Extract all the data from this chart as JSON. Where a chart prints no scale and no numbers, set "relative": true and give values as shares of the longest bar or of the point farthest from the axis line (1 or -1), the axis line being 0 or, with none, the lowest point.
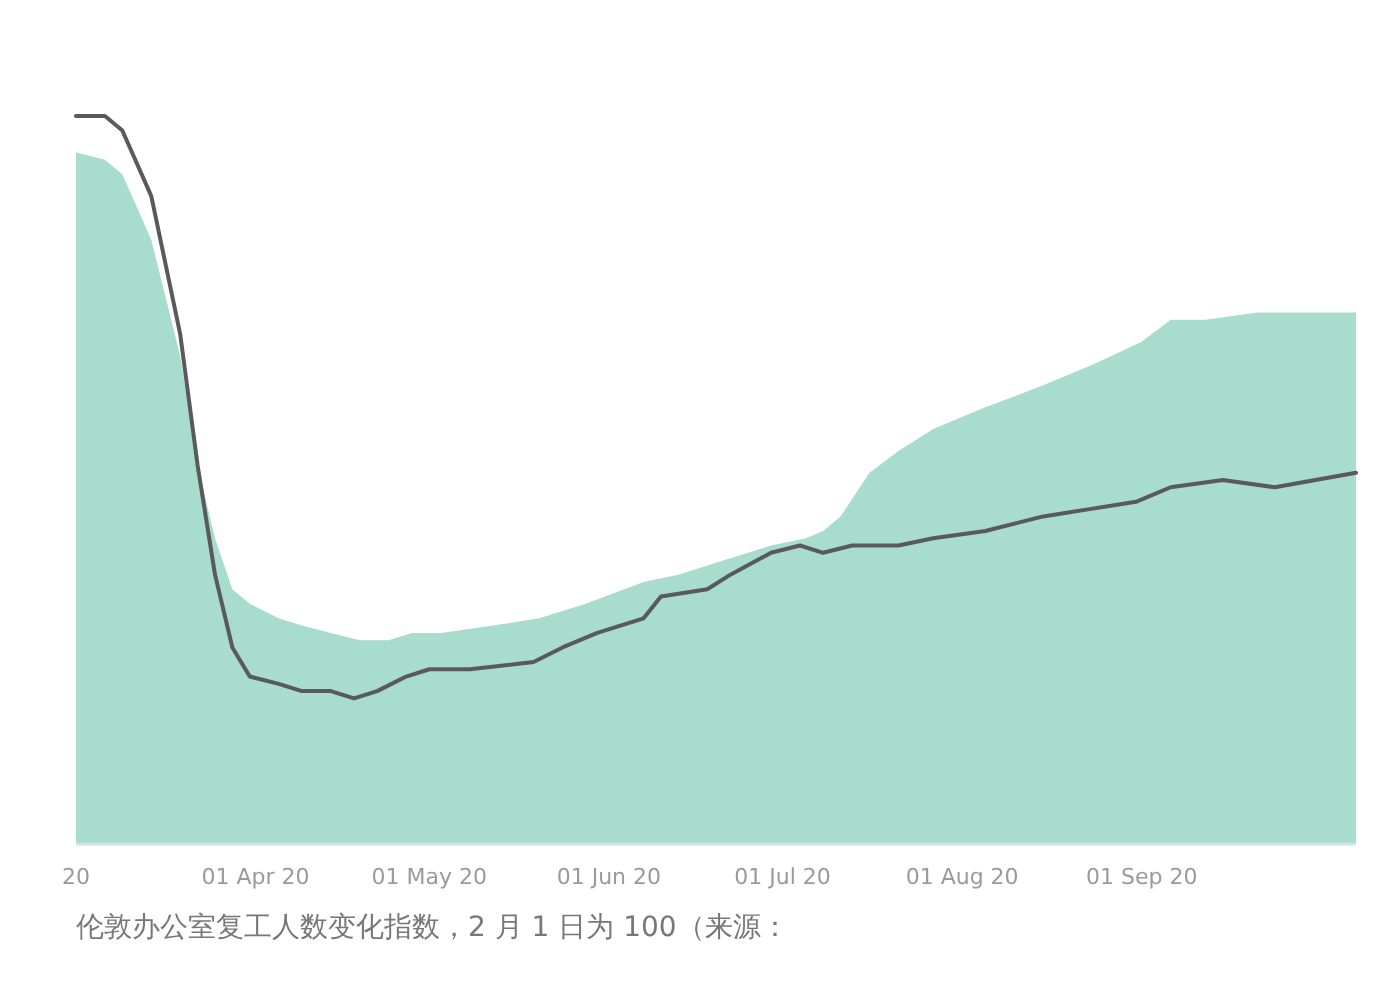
{
  "chart_data": {
    "type": "area",
    "relative": true,
    "grid": false,
    "annotations": [
      "伦敦办公室复工人数变化指数，2 月 1 日为 100（来源："
    ],
    "xlim": [
      "2020-03-01",
      "2020-10-08"
    ],
    "xticks": [
      {
        "value": "2020-03-01",
        "label": "20"
      },
      {
        "value": "2020-04-01",
        "label": "01 Apr 20"
      },
      {
        "value": "2020-05-01",
        "label": "01 May 20"
      },
      {
        "value": "2020-06-01",
        "label": "01 Jun 20"
      },
      {
        "value": "2020-07-01",
        "label": "01 Jul 20"
      },
      {
        "value": "2020-08-01",
        "label": "01 Aug 20"
      },
      {
        "value": "2020-09-01",
        "label": "01 Sep 20"
      }
    ],
    "series": [
      {
        "color": "#a8dccd",
        "x": [
          "2020-03-01",
          "2020-03-06",
          "2020-03-09",
          "2020-03-14",
          "2020-03-19",
          "2020-03-22",
          "2020-03-25",
          "2020-03-28",
          "2020-03-31",
          "2020-04-05",
          "2020-04-09",
          "2020-04-14",
          "2020-04-19",
          "2020-04-24",
          "2020-04-28",
          "2020-05-03",
          "2020-05-12",
          "2020-05-20",
          "2020-05-28",
          "2020-06-07",
          "2020-06-13",
          "2020-06-21",
          "2020-06-29",
          "2020-07-05",
          "2020-07-08",
          "2020-07-11",
          "2020-07-16",
          "2020-07-21",
          "2020-07-27",
          "2020-08-05",
          "2020-08-15",
          "2020-08-24",
          "2020-09-01",
          "2020-09-06",
          "2020-09-12",
          "2020-09-21",
          "2020-10-08"
        ],
        "values": [
          0.95,
          0.94,
          0.92,
          0.83,
          0.67,
          0.52,
          0.42,
          0.35,
          0.33,
          0.31,
          0.3,
          0.29,
          0.28,
          0.28,
          0.29,
          0.29,
          0.3,
          0.31,
          0.33,
          0.36,
          0.37,
          0.39,
          0.41,
          0.42,
          0.43,
          0.45,
          0.51,
          0.54,
          0.57,
          0.6,
          0.63,
          0.66,
          0.69,
          0.72,
          0.72,
          0.73,
          0.73
        ]
      },
      {
        "type": "line",
        "color": "#5a5a5a",
        "x": [
          "2020-03-01",
          "2020-03-06",
          "2020-03-09",
          "2020-03-14",
          "2020-03-19",
          "2020-03-22",
          "2020-03-25",
          "2020-03-28",
          "2020-03-31",
          "2020-04-05",
          "2020-04-09",
          "2020-04-14",
          "2020-04-18",
          "2020-04-22",
          "2020-04-27",
          "2020-05-01",
          "2020-05-08",
          "2020-05-19",
          "2020-05-24",
          "2020-05-30",
          "2020-06-07",
          "2020-06-10",
          "2020-06-18",
          "2020-06-22",
          "2020-06-29",
          "2020-07-04",
          "2020-07-08",
          "2020-07-13",
          "2020-07-21",
          "2020-07-27",
          "2020-08-05",
          "2020-08-15",
          "2020-08-23",
          "2020-08-31",
          "2020-09-06",
          "2020-09-15",
          "2020-09-24",
          "2020-10-08"
        ],
        "values": [
          1.0,
          1.0,
          0.98,
          0.89,
          0.7,
          0.52,
          0.37,
          0.27,
          0.23,
          0.22,
          0.21,
          0.21,
          0.2,
          0.21,
          0.23,
          0.24,
          0.24,
          0.25,
          0.27,
          0.29,
          0.31,
          0.34,
          0.35,
          0.37,
          0.4,
          0.41,
          0.4,
          0.41,
          0.41,
          0.42,
          0.43,
          0.45,
          0.46,
          0.47,
          0.49,
          0.5,
          0.49,
          0.51
        ]
      }
    ]
  }
}
